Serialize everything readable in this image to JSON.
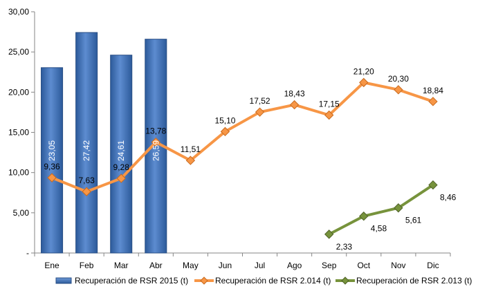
{
  "chart_data": {
    "type": "bar",
    "categories": [
      "Ene",
      "Feb",
      "Mar",
      "Abr",
      "May",
      "Jun",
      "Jul",
      "Ago",
      "Sep",
      "Oct",
      "Nov",
      "Dic"
    ],
    "y_tick_labels": [
      "-",
      "5,00",
      "10,00",
      "15,00",
      "20,00",
      "25,00",
      "30,00"
    ],
    "ylim": [
      0,
      30
    ],
    "grid": false,
    "legend_position": "bottom",
    "series": [
      {
        "name": "Recuperación de RSR 2015 (t)",
        "type": "bar",
        "color": "#4472C4",
        "values": [
          23.05,
          27.42,
          24.61,
          26.59,
          null,
          null,
          null,
          null,
          null,
          null,
          null,
          null
        ],
        "labels": [
          "23,05",
          "27,42",
          "24,61",
          "26,59",
          "",
          "",
          "",
          "",
          "",
          "",
          "",
          ""
        ]
      },
      {
        "name": "Recuperación de RSR 2.014 (t)",
        "type": "line",
        "color": "#F79646",
        "values": [
          9.36,
          7.63,
          9.28,
          13.78,
          11.51,
          15.1,
          17.52,
          18.43,
          17.15,
          21.2,
          20.3,
          18.84
        ],
        "labels": [
          "9,36",
          "7,63",
          "9,28",
          "13,78",
          "11,51",
          "15,10",
          "17,52",
          "18,43",
          "17,15",
          "21,20",
          "20,30",
          "18,84"
        ]
      },
      {
        "name": "Recuperación de RSR 2.013 (t)",
        "type": "line",
        "color": "#77933C",
        "values": [
          null,
          null,
          null,
          null,
          null,
          null,
          null,
          null,
          2.33,
          4.58,
          5.61,
          8.46
        ],
        "labels": [
          "",
          "",
          "",
          "",
          "",
          "",
          "",
          "",
          "2,33",
          "4,58",
          "5,61",
          "8,46"
        ]
      }
    ]
  }
}
